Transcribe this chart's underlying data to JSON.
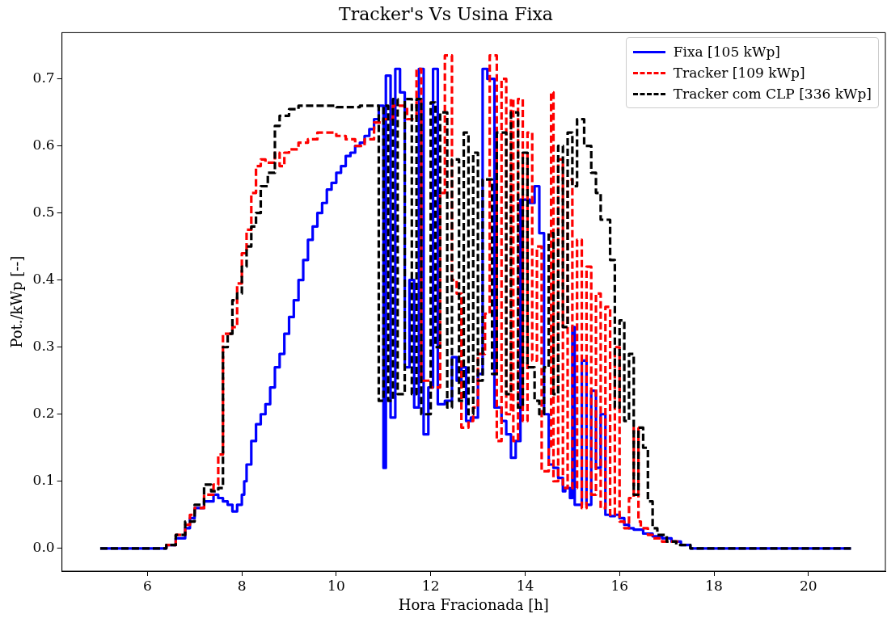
{
  "chart_data": {
    "type": "step",
    "title": "Tracker's Vs Usina Fixa",
    "xlabel": "Hora Fracionada [h]",
    "ylabel": "Pot./kWp [--]",
    "xlim": [
      4.19,
      21.63
    ],
    "ylim": [
      -0.034,
      0.769
    ],
    "xticks": [
      6,
      8,
      10,
      12,
      14,
      16,
      18,
      20
    ],
    "yticks": [
      {
        "value": 0,
        "label": "0.0"
      },
      0.1,
      0.2,
      0.3,
      0.4,
      0.5,
      0.6,
      0.7
    ],
    "grid": false,
    "legend": "top right",
    "marker": "none",
    "series": [
      {
        "name": "Fixa [105 kWp]",
        "color": "#0000ff",
        "line_style": "solid",
        "x": [
          5,
          6.4,
          6.6,
          6.8,
          6.9,
          7.0,
          7.2,
          7.4,
          7.5,
          7.6,
          7.7,
          7.8,
          7.9,
          8.0,
          8.05,
          8.1,
          8.2,
          8.3,
          8.4,
          8.5,
          8.6,
          8.7,
          8.8,
          8.9,
          9.0,
          9.1,
          9.2,
          9.3,
          9.4,
          9.5,
          9.6,
          9.7,
          9.8,
          9.9,
          10.0,
          10.1,
          10.2,
          10.3,
          10.4,
          10.5,
          10.6,
          10.7,
          10.8,
          10.9,
          11.0,
          11.05,
          11.15,
          11.25,
          11.35,
          11.45,
          11.55,
          11.65,
          11.75,
          11.85,
          11.95,
          12.05,
          12.15,
          12.3,
          12.45,
          12.55,
          12.65,
          12.75,
          12.85,
          13.0,
          13.1,
          13.2,
          13.35,
          13.5,
          13.6,
          13.7,
          13.8,
          13.9,
          14.0,
          14.1,
          14.2,
          14.3,
          14.4,
          14.5,
          14.6,
          14.7,
          14.8,
          14.85,
          14.95,
          15.0,
          15.05,
          15.2,
          15.3,
          15.4,
          15.5,
          15.6,
          15.7,
          15.8,
          15.9,
          16.0,
          16.1,
          16.2,
          16.3,
          16.5,
          16.7,
          16.9,
          17.1,
          17.3,
          17.5,
          17.7,
          20.9
        ],
        "values": [
          0,
          0,
          0.005,
          0.015,
          0.03,
          0.045,
          0.06,
          0.07,
          0.08,
          0.075,
          0.07,
          0.065,
          0.055,
          0.065,
          0.08,
          0.1,
          0.125,
          0.16,
          0.185,
          0.2,
          0.215,
          0.24,
          0.27,
          0.29,
          0.32,
          0.345,
          0.37,
          0.4,
          0.43,
          0.46,
          0.48,
          0.5,
          0.515,
          0.535,
          0.545,
          0.56,
          0.57,
          0.585,
          0.59,
          0.6,
          0.605,
          0.615,
          0.625,
          0.64,
          0.66,
          0.12,
          0.705,
          0.195,
          0.715,
          0.68,
          0.27,
          0.4,
          0.21,
          0.715,
          0.17,
          0.24,
          0.715,
          0.215,
          0.22,
          0.285,
          0.25,
          0.27,
          0.19,
          0.195,
          0.26,
          0.715,
          0.7,
          0.21,
          0.19,
          0.17,
          0.135,
          0.16,
          0.52,
          0.52,
          0.515,
          0.54,
          0.47,
          0.2,
          0.125,
          0.12,
          0.105,
          0.085,
          0.09,
          0.075,
          0.33,
          0.065,
          0.28,
          0.065,
          0.235,
          0.12,
          0.2,
          0.05,
          0.048,
          0.05,
          0.045,
          0.035,
          0.03,
          0.028,
          0.022,
          0.018,
          0.015,
          0.01,
          0.005,
          0,
          0
        ]
      },
      {
        "name": "Tracker [109 kWp]",
        "color": "#ff0000",
        "line_style": "dashed",
        "x": [
          6.4,
          6.6,
          6.8,
          6.9,
          7.0,
          7.2,
          7.4,
          7.5,
          7.6,
          7.8,
          7.9,
          8.0,
          8.1,
          8.2,
          8.3,
          8.4,
          8.5,
          8.7,
          8.8,
          8.9,
          9.0,
          9.2,
          9.4,
          9.6,
          9.8,
          10.0,
          10.2,
          10.4,
          10.6,
          10.8,
          11.0,
          11.2,
          11.3,
          11.5,
          11.7,
          11.8,
          12.0,
          12.2,
          12.3,
          12.45,
          12.55,
          12.65,
          12.8,
          12.9,
          13.0,
          13.15,
          13.25,
          13.4,
          13.5,
          13.6,
          13.7,
          13.75,
          13.85,
          13.95,
          14.05,
          14.15,
          14.25,
          14.35,
          14.5,
          14.55,
          14.6,
          14.7,
          14.8,
          14.9,
          15.0,
          15.1,
          15.2,
          15.3,
          15.4,
          15.5,
          15.6,
          15.7,
          15.8,
          15.9,
          16.0,
          16.1,
          16.2,
          16.3,
          16.4,
          16.45,
          16.6,
          16.7,
          16.9,
          17.1,
          17.3
        ],
        "values": [
          0,
          0.005,
          0.02,
          0.035,
          0.05,
          0.06,
          0.08,
          0.095,
          0.14,
          0.32,
          0.33,
          0.395,
          0.44,
          0.475,
          0.53,
          0.57,
          0.58,
          0.575,
          0.59,
          0.57,
          0.59,
          0.595,
          0.605,
          0.61,
          0.62,
          0.62,
          0.615,
          0.61,
          0.6,
          0.61,
          0.635,
          0.64,
          0.66,
          0.66,
          0.64,
          0.715,
          0.25,
          0.24,
          0.53,
          0.735,
          0.4,
          0.38,
          0.18,
          0.19,
          0.21,
          0.29,
          0.35,
          0.735,
          0.16,
          0.7,
          0.2,
          0.67,
          0.16,
          0.67,
          0.19,
          0.62,
          0.28,
          0.45,
          0.115,
          0.15,
          0.68,
          0.1,
          0.58,
          0.09,
          0.55,
          0.09,
          0.46,
          0.06,
          0.42,
          0.08,
          0.38,
          0.06,
          0.36,
          0.05,
          0.3,
          0.04,
          0.03,
          0.075,
          0.18,
          0.04,
          0.03,
          0.02,
          0.015,
          0.01,
          0.01
        ]
      },
      {
        "name": "Tracker com CLP [336 kWp]",
        "color": "#000000",
        "line_style": "dashed",
        "x": [
          5,
          6.4,
          6.6,
          6.8,
          7.0,
          7.2,
          7.35,
          7.5,
          7.6,
          7.7,
          7.8,
          7.9,
          8.0,
          8.1,
          8.2,
          8.3,
          8.4,
          8.55,
          8.7,
          8.8,
          9.0,
          9.2,
          9.5,
          10.0,
          10.5,
          10.9,
          11.0,
          11.1,
          11.2,
          11.3,
          11.45,
          11.6,
          11.7,
          11.8,
          12.0,
          12.1,
          12.2,
          12.35,
          12.45,
          12.6,
          12.7,
          12.8,
          12.9,
          13.0,
          13.1,
          13.3,
          13.4,
          13.6,
          13.7,
          13.85,
          13.95,
          14.05,
          14.2,
          14.3,
          14.4,
          14.5,
          14.6,
          14.7,
          14.8,
          14.9,
          15.0,
          15.1,
          15.25,
          15.4,
          15.5,
          15.6,
          15.7,
          15.8,
          15.9,
          16.0,
          16.1,
          16.2,
          16.3,
          16.4,
          16.5,
          16.6,
          16.7,
          16.8,
          17.0,
          17.2,
          17.5,
          17.7,
          20.9
        ],
        "values": [
          0,
          0,
          0.005,
          0.02,
          0.04,
          0.065,
          0.095,
          0.085,
          0.09,
          0.3,
          0.32,
          0.37,
          0.38,
          0.42,
          0.45,
          0.48,
          0.5,
          0.54,
          0.56,
          0.63,
          0.645,
          0.655,
          0.66,
          0.66,
          0.658,
          0.66,
          0.22,
          0.66,
          0.22,
          0.67,
          0.23,
          0.67,
          0.23,
          0.67,
          0.2,
          0.665,
          0.3,
          0.65,
          0.21,
          0.58,
          0.22,
          0.62,
          0.2,
          0.59,
          0.25,
          0.55,
          0.26,
          0.62,
          0.23,
          0.65,
          0.21,
          0.59,
          0.27,
          0.22,
          0.2,
          0.27,
          0.47,
          0.23,
          0.6,
          0.33,
          0.62,
          0.54,
          0.64,
          0.6,
          0.56,
          0.53,
          0.49,
          0.49,
          0.43,
          0.21,
          0.34,
          0.19,
          0.29,
          0.08,
          0.18,
          0.15,
          0.07,
          0.03,
          0.02,
          0.01,
          0.005,
          0,
          0
        ]
      }
    ]
  }
}
